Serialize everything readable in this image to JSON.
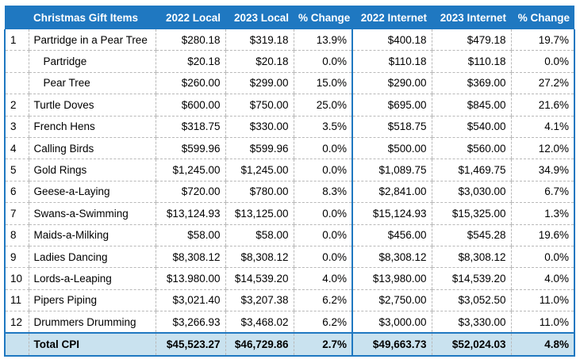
{
  "headers": [
    "",
    "Christmas Gift Items",
    "2022 Local",
    "2023 Local",
    "% Change",
    "2022 Internet",
    "2023 Internet",
    "% Change"
  ],
  "rows": [
    {
      "idx": "1",
      "name": "Partridge in a Pear Tree",
      "local2022": "$280.18",
      "local2023": "$319.18",
      "localChange": "13.9%",
      "net2022": "$400.18",
      "net2023": "$479.18",
      "netChange": "19.7%",
      "sub": false
    },
    {
      "idx": "",
      "name": "Partridge",
      "local2022": "$20.18",
      "local2023": "$20.18",
      "localChange": "0.0%",
      "net2022": "$110.18",
      "net2023": "$110.18",
      "netChange": "0.0%",
      "sub": true
    },
    {
      "idx": "",
      "name": "Pear Tree",
      "local2022": "$260.00",
      "local2023": "$299.00",
      "localChange": "15.0%",
      "net2022": "$290.00",
      "net2023": "$369.00",
      "netChange": "27.2%",
      "sub": true
    },
    {
      "idx": "2",
      "name": "Turtle Doves",
      "local2022": "$600.00",
      "local2023": "$750.00",
      "localChange": "25.0%",
      "net2022": "$695.00",
      "net2023": "$845.00",
      "netChange": "21.6%",
      "sub": false
    },
    {
      "idx": "3",
      "name": "French Hens",
      "local2022": "$318.75",
      "local2023": "$330.00",
      "localChange": "3.5%",
      "net2022": "$518.75",
      "net2023": "$540.00",
      "netChange": "4.1%",
      "sub": false
    },
    {
      "idx": "4",
      "name": "Calling Birds",
      "local2022": "$599.96",
      "local2023": "$599.96",
      "localChange": "0.0%",
      "net2022": "$500.00",
      "net2023": "$560.00",
      "netChange": "12.0%",
      "sub": false
    },
    {
      "idx": "5",
      "name": "Gold Rings",
      "local2022": "$1,245.00",
      "local2023": "$1,245.00",
      "localChange": "0.0%",
      "net2022": "$1,089.75",
      "net2023": "$1,469.75",
      "netChange": "34.9%",
      "sub": false
    },
    {
      "idx": "6",
      "name": "Geese-a-Laying",
      "local2022": "$720.00",
      "local2023": "$780.00",
      "localChange": "8.3%",
      "net2022": "$2,841.00",
      "net2023": "$3,030.00",
      "netChange": "6.7%",
      "sub": false
    },
    {
      "idx": "7",
      "name": "Swans-a-Swimming",
      "local2022": "$13,124.93",
      "local2023": "$13,125.00",
      "localChange": "0.0%",
      "net2022": "$15,124.93",
      "net2023": "$15,325.00",
      "netChange": "1.3%",
      "sub": false
    },
    {
      "idx": "8",
      "name": "Maids-a-Milking",
      "local2022": "$58.00",
      "local2023": "$58.00",
      "localChange": "0.0%",
      "net2022": "$456.00",
      "net2023": "$545.28",
      "netChange": "19.6%",
      "sub": false
    },
    {
      "idx": "9",
      "name": "Ladies Dancing",
      "local2022": "$8,308.12",
      "local2023": "$8,308.12",
      "localChange": "0.0%",
      "net2022": "$8,308.12",
      "net2023": "$8,308.12",
      "netChange": "0.0%",
      "sub": false
    },
    {
      "idx": "10",
      "name": "Lords-a-Leaping",
      "local2022": "$13.980.00",
      "local2023": "$14,539.20",
      "localChange": "4.0%",
      "net2022": "$13,980.00",
      "net2023": "$14,539.20",
      "netChange": "4.0%",
      "sub": false
    },
    {
      "idx": "11",
      "name": "Pipers Piping",
      "local2022": "$3,021.40",
      "local2023": "$3,207.38",
      "localChange": "6.2%",
      "net2022": "$2,750.00",
      "net2023": "$3,052.50",
      "netChange": "11.0%",
      "sub": false
    },
    {
      "idx": "12",
      "name": "Drummers Drumming",
      "local2022": "$3,266.93",
      "local2023": "$3,468.02",
      "localChange": "6.2%",
      "net2022": "$3,000.00",
      "net2023": "$3,330.00",
      "netChange": "11.0%",
      "sub": false
    }
  ],
  "total": {
    "name": "Total CPI",
    "local2022": "$45,523.27",
    "local2023": "$46,729.86",
    "localChange": "2.7%",
    "net2022": "$49,663.73",
    "net2023": "$52,024.03",
    "netChange": "4.8%"
  },
  "colors": {
    "header": "#1f78c1",
    "totalRow": "#c9e2ef",
    "gridDash": "#b9b9b9"
  }
}
